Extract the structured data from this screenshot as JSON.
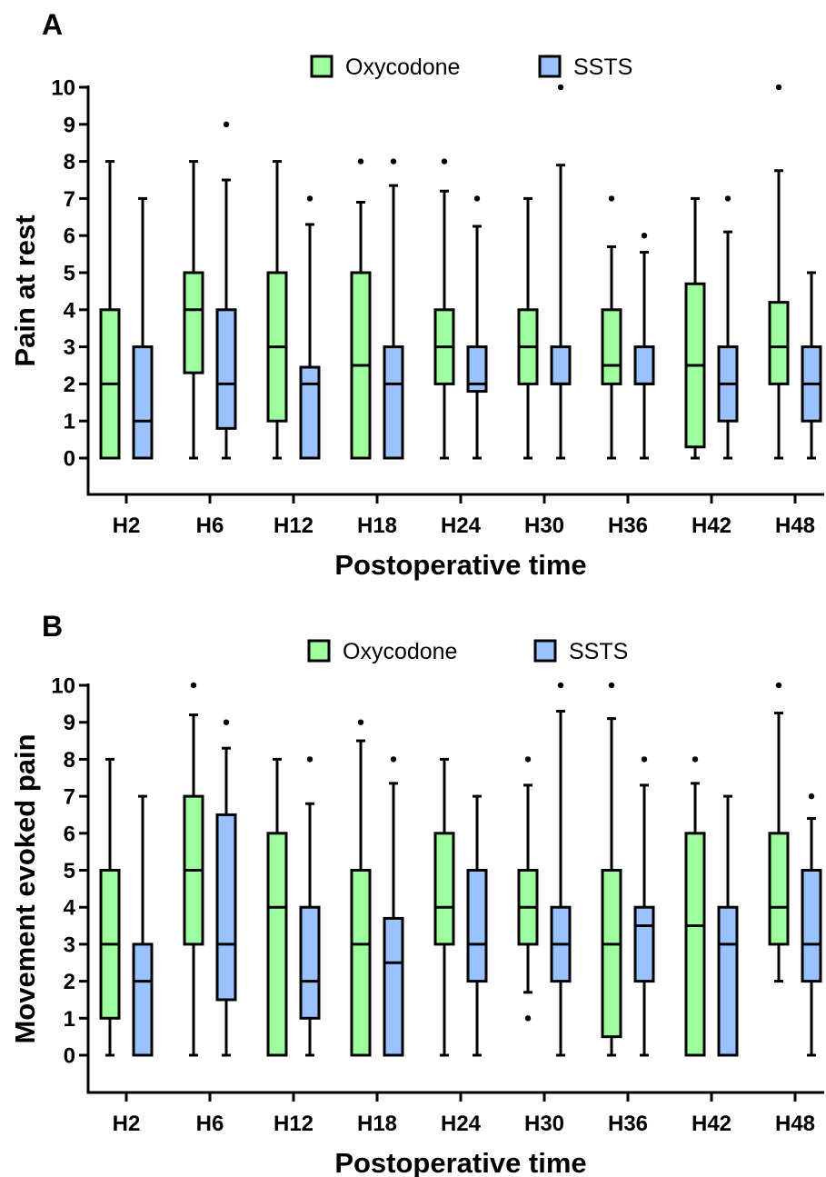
{
  "chart_data": [
    {
      "panel": "A",
      "type": "box",
      "xlabel": "Postoperative time",
      "ylabel": "Pain at rest",
      "ylim": [
        0,
        10
      ],
      "yticks": [
        0,
        1,
        2,
        3,
        4,
        5,
        6,
        7,
        8,
        9,
        10
      ],
      "legend_position": "top-center",
      "categories": [
        "H2",
        "H6",
        "H12",
        "H18",
        "H24",
        "H30",
        "H36",
        "H42",
        "H48"
      ],
      "series": [
        {
          "name": "Oxycodone",
          "color": "#9dff9d",
          "boxes": [
            {
              "min": 0,
              "q1": 0,
              "median": 2,
              "q3": 4,
              "max": 8,
              "outliers": []
            },
            {
              "min": 0,
              "q1": 2.3,
              "median": 4,
              "q3": 5,
              "max": 8,
              "outliers": []
            },
            {
              "min": 0,
              "q1": 1,
              "median": 3,
              "q3": 5,
              "max": 8,
              "outliers": []
            },
            {
              "min": 0,
              "q1": 0,
              "median": 2.5,
              "q3": 5,
              "max": 6.9,
              "outliers": [
                8
              ]
            },
            {
              "min": 0,
              "q1": 2,
              "median": 3,
              "q3": 4,
              "max": 7.2,
              "outliers": [
                8
              ]
            },
            {
              "min": 0,
              "q1": 2,
              "median": 3,
              "q3": 4,
              "max": 7,
              "outliers": []
            },
            {
              "min": 0,
              "q1": 2,
              "median": 2.5,
              "q3": 4,
              "max": 5.7,
              "outliers": [
                7
              ]
            },
            {
              "min": 0,
              "q1": 0.3,
              "median": 2.5,
              "q3": 4.7,
              "max": 7,
              "outliers": []
            },
            {
              "min": 0,
              "q1": 2,
              "median": 3,
              "q3": 4.2,
              "max": 7.75,
              "outliers": [
                10
              ]
            }
          ]
        },
        {
          "name": "SSTS",
          "color": "#99c2ff",
          "boxes": [
            {
              "min": 0,
              "q1": 0,
              "median": 1,
              "q3": 3,
              "max": 7,
              "outliers": []
            },
            {
              "min": 0,
              "q1": 0.8,
              "median": 2,
              "q3": 4,
              "max": 7.5,
              "outliers": [
                9
              ]
            },
            {
              "min": 0,
              "q1": 0,
              "median": 2,
              "q3": 2.45,
              "max": 6.3,
              "outliers": [
                7
              ]
            },
            {
              "min": 0,
              "q1": 0,
              "median": 2,
              "q3": 3,
              "max": 7.35,
              "outliers": [
                8
              ]
            },
            {
              "min": 0,
              "q1": 1.8,
              "median": 2,
              "q3": 3,
              "max": 6.25,
              "outliers": [
                7
              ]
            },
            {
              "min": 0,
              "q1": 2,
              "median": 2,
              "q3": 3,
              "max": 7.9,
              "outliers": [
                10
              ]
            },
            {
              "min": 0,
              "q1": 2,
              "median": 2,
              "q3": 3,
              "max": 5.55,
              "outliers": [
                6
              ]
            },
            {
              "min": 0,
              "q1": 1,
              "median": 2,
              "q3": 3,
              "max": 6.1,
              "outliers": [
                7
              ]
            },
            {
              "min": 0,
              "q1": 1,
              "median": 2,
              "q3": 3,
              "max": 5,
              "outliers": []
            }
          ]
        }
      ]
    },
    {
      "panel": "B",
      "type": "box",
      "xlabel": "Postoperative time",
      "ylabel": "Movement evoked pain",
      "ylim": [
        0,
        10
      ],
      "yticks": [
        0,
        1,
        2,
        3,
        4,
        5,
        6,
        7,
        8,
        9,
        10
      ],
      "legend_position": "top-center",
      "categories": [
        "H2",
        "H6",
        "H12",
        "H18",
        "H24",
        "H30",
        "H36",
        "H42",
        "H48"
      ],
      "series": [
        {
          "name": "Oxycodone",
          "color": "#9dff9d",
          "boxes": [
            {
              "min": 0,
              "q1": 1,
              "median": 3,
              "q3": 5,
              "max": 8,
              "outliers": []
            },
            {
              "min": 0,
              "q1": 3,
              "median": 5,
              "q3": 7,
              "max": 9.2,
              "outliers": [
                10
              ]
            },
            {
              "min": 0,
              "q1": 0,
              "median": 4,
              "q3": 6,
              "max": 8,
              "outliers": []
            },
            {
              "min": 0,
              "q1": 0,
              "median": 3,
              "q3": 5,
              "max": 8.5,
              "outliers": [
                9
              ]
            },
            {
              "min": 0,
              "q1": 3,
              "median": 4,
              "q3": 6,
              "max": 8,
              "outliers": []
            },
            {
              "min": 1.7,
              "q1": 3,
              "median": 4,
              "q3": 5,
              "max": 7.3,
              "outliers": [
                8,
                1
              ]
            },
            {
              "min": 0,
              "q1": 0.5,
              "median": 3,
              "q3": 5,
              "max": 9.1,
              "outliers": [
                10
              ]
            },
            {
              "min": 0,
              "q1": 0,
              "median": 3.5,
              "q3": 6,
              "max": 7.35,
              "outliers": [
                8
              ]
            },
            {
              "min": 2,
              "q1": 3,
              "median": 4,
              "q3": 6,
              "max": 9.25,
              "outliers": [
                10
              ]
            }
          ]
        },
        {
          "name": "SSTS",
          "color": "#99c2ff",
          "boxes": [
            {
              "min": 0,
              "q1": 0,
              "median": 2,
              "q3": 3,
              "max": 7,
              "outliers": []
            },
            {
              "min": 0,
              "q1": 1.5,
              "median": 3,
              "q3": 6.5,
              "max": 8.3,
              "outliers": [
                9
              ]
            },
            {
              "min": 0,
              "q1": 1,
              "median": 2,
              "q3": 4,
              "max": 6.8,
              "outliers": [
                8
              ]
            },
            {
              "min": 0,
              "q1": 0,
              "median": 2.5,
              "q3": 3.7,
              "max": 7.35,
              "outliers": [
                8
              ]
            },
            {
              "min": 0,
              "q1": 2,
              "median": 3,
              "q3": 5,
              "max": 7,
              "outliers": []
            },
            {
              "min": 0,
              "q1": 2,
              "median": 3,
              "q3": 4,
              "max": 9.3,
              "outliers": [
                10
              ]
            },
            {
              "min": 0,
              "q1": 2,
              "median": 3.5,
              "q3": 4,
              "max": 7.3,
              "outliers": [
                8
              ]
            },
            {
              "min": 0,
              "q1": 0,
              "median": 3,
              "q3": 4,
              "max": 7,
              "outliers": []
            },
            {
              "min": 0,
              "q1": 2,
              "median": 3,
              "q3": 5,
              "max": 6.4,
              "outliers": [
                7
              ]
            }
          ]
        }
      ]
    }
  ]
}
